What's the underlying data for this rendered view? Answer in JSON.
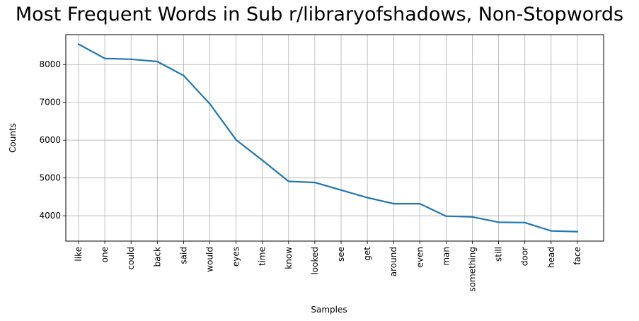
{
  "chart_data": {
    "type": "line",
    "title": "Most Frequent Words in Sub r/libraryofshadows, Non-Stopwords",
    "xlabel": "Samples",
    "ylabel": "Counts",
    "categories": [
      "like",
      "one",
      "could",
      "back",
      "said",
      "would",
      "eyes",
      "time",
      "know",
      "looked",
      "see",
      "get",
      "around",
      "even",
      "man",
      "something",
      "still",
      "door",
      "head",
      "face"
    ],
    "values": [
      8540,
      8160,
      8140,
      8080,
      7710,
      6960,
      6010,
      5470,
      4910,
      4880,
      4680,
      4480,
      4320,
      4320,
      3990,
      3970,
      3830,
      3820,
      3600,
      3580
    ],
    "yticks": [
      4000,
      5000,
      6000,
      7000,
      8000
    ],
    "ylim": [
      3330,
      8790
    ],
    "grid": true,
    "line_color": "#1f77b4",
    "grid_color": "#b0b0b0"
  }
}
